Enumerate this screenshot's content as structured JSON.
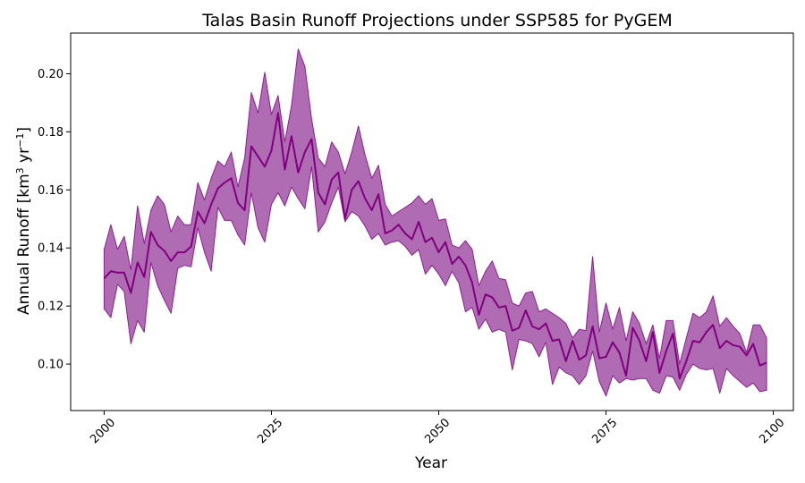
{
  "chart_data": {
    "type": "area",
    "title": "Talas Basin Runoff Projections under SSP585 for PyGEM",
    "xlabel": "Year",
    "ylabel": {
      "text": "Annual Runoff [km",
      "sup1": "3",
      "mid": " yr",
      "sup2": "−1",
      "end": "]"
    },
    "xlim": [
      1995,
      2103
    ],
    "ylim": [
      0.084,
      0.214
    ],
    "xticks": [
      2000,
      2025,
      2050,
      2075,
      2100
    ],
    "yticks": [
      0.1,
      0.12,
      0.14,
      0.16,
      0.18,
      0.2
    ],
    "ytick_labels": [
      "0.10",
      "0.12",
      "0.14",
      "0.16",
      "0.18",
      "0.20"
    ],
    "grid": false,
    "colors": {
      "line": "#800080",
      "band": "#b06cb3",
      "band_edge": "#8b1f8f"
    },
    "x_start": 2000,
    "x_end": 2099,
    "mean": [
      0.1295,
      0.132,
      0.1315,
      0.1315,
      0.1245,
      0.135,
      0.13,
      0.1455,
      0.141,
      0.139,
      0.1355,
      0.1385,
      0.1385,
      0.1405,
      0.1525,
      0.1485,
      0.155,
      0.1605,
      0.1625,
      0.164,
      0.1555,
      0.153,
      0.175,
      0.1715,
      0.168,
      0.1735,
      0.1865,
      0.167,
      0.1785,
      0.166,
      0.173,
      0.1775,
      0.159,
      0.155,
      0.1635,
      0.166,
      0.15,
      0.16,
      0.163,
      0.157,
      0.153,
      0.1585,
      0.145,
      0.146,
      0.148,
      0.145,
      0.143,
      0.149,
      0.142,
      0.1435,
      0.1385,
      0.142,
      0.1345,
      0.137,
      0.134,
      0.128,
      0.117,
      0.124,
      0.123,
      0.1195,
      0.12,
      0.1115,
      0.1125,
      0.1185,
      0.113,
      0.112,
      0.114,
      0.108,
      0.1085,
      0.101,
      0.108,
      0.1015,
      0.103,
      0.113,
      0.102,
      0.1025,
      0.1075,
      0.104,
      0.096,
      0.1125,
      0.108,
      0.101,
      0.111,
      0.097,
      0.1045,
      0.1105,
      0.095,
      0.101,
      0.108,
      0.1075,
      0.111,
      0.1135,
      0.1055,
      0.108,
      0.1065,
      0.106,
      0.103,
      0.107,
      0.0995,
      0.1005
    ],
    "upper": [
      0.1395,
      0.148,
      0.1395,
      0.144,
      0.1325,
      0.1545,
      0.1415,
      0.153,
      0.158,
      0.155,
      0.1455,
      0.151,
      0.148,
      0.148,
      0.1625,
      0.1565,
      0.164,
      0.17,
      0.168,
      0.173,
      0.161,
      0.171,
      0.1935,
      0.1865,
      0.2005,
      0.186,
      0.1925,
      0.1765,
      0.189,
      0.2085,
      0.2025,
      0.1845,
      0.171,
      0.168,
      0.1765,
      0.173,
      0.1655,
      0.173,
      0.182,
      0.172,
      0.164,
      0.1685,
      0.155,
      0.151,
      0.1525,
      0.154,
      0.1555,
      0.158,
      0.155,
      0.157,
      0.1495,
      0.15,
      0.141,
      0.14,
      0.1425,
      0.1395,
      0.127,
      0.132,
      0.1355,
      0.1295,
      0.129,
      0.121,
      0.12,
      0.1245,
      0.125,
      0.118,
      0.119,
      0.1175,
      0.116,
      0.114,
      0.109,
      0.112,
      0.1115,
      0.137,
      0.111,
      0.121,
      0.112,
      0.1195,
      0.108,
      0.118,
      0.114,
      0.107,
      0.1135,
      0.102,
      0.115,
      0.115,
      0.1,
      0.109,
      0.1175,
      0.116,
      0.118,
      0.1235,
      0.113,
      0.116,
      0.113,
      0.1105,
      0.104,
      0.1135,
      0.1135,
      0.109
    ],
    "lower": [
      0.119,
      0.116,
      0.1275,
      0.125,
      0.107,
      0.115,
      0.111,
      0.135,
      0.127,
      0.122,
      0.1175,
      0.133,
      0.134,
      0.1335,
      0.147,
      0.1385,
      0.132,
      0.154,
      0.1495,
      0.1495,
      0.1445,
      0.141,
      0.159,
      0.147,
      0.142,
      0.155,
      0.159,
      0.1545,
      0.161,
      0.157,
      0.1535,
      0.168,
      0.1455,
      0.149,
      0.1555,
      0.161,
      0.149,
      0.1525,
      0.151,
      0.1475,
      0.143,
      0.145,
      0.141,
      0.142,
      0.1425,
      0.1405,
      0.1375,
      0.1395,
      0.131,
      0.134,
      0.131,
      0.127,
      0.132,
      0.128,
      0.118,
      0.1195,
      0.112,
      0.1155,
      0.111,
      0.112,
      0.111,
      0.098,
      0.1085,
      0.108,
      0.107,
      0.1025,
      0.1075,
      0.093,
      0.099,
      0.097,
      0.096,
      0.093,
      0.096,
      0.1045,
      0.094,
      0.089,
      0.096,
      0.0935,
      0.095,
      0.0945,
      0.095,
      0.095,
      0.091,
      0.09,
      0.096,
      0.0955,
      0.091,
      0.0965,
      0.1,
      0.0985,
      0.098,
      0.0985,
      0.09,
      0.0985,
      0.096,
      0.094,
      0.092,
      0.0935,
      0.0905,
      0.091
    ]
  }
}
